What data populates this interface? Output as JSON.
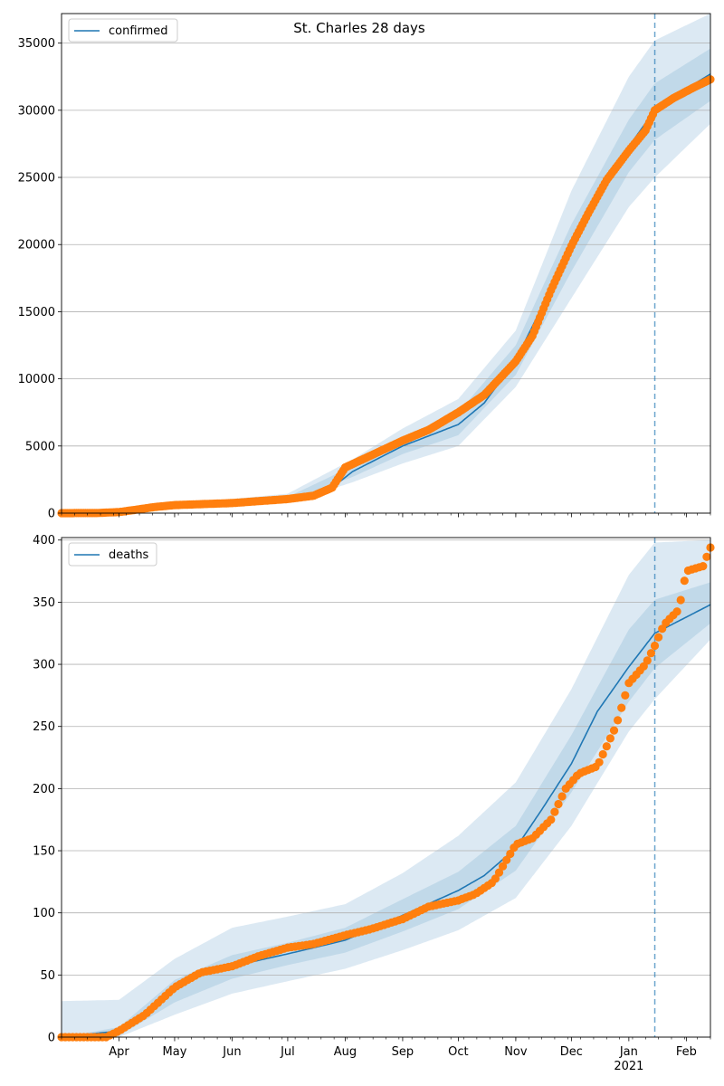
{
  "figure": {
    "title": "St. Charles 28 days"
  },
  "chart_data": [
    {
      "type": "line",
      "id": "confirmed",
      "title": "St. Charles 28 days",
      "legend": {
        "label": "confirmed",
        "position": "top-left"
      },
      "ylim": [
        0,
        37200
      ],
      "yticks": [
        0,
        5000,
        10000,
        15000,
        20000,
        25000,
        30000,
        35000
      ],
      "grid": "y",
      "forecast_start": "2021-01-15",
      "model_line": {
        "dates": [
          "2020-03-01",
          "2020-04-01",
          "2020-05-01",
          "2020-06-01",
          "2020-07-01",
          "2020-07-15",
          "2020-07-25",
          "2020-08-05",
          "2020-09-01",
          "2020-10-01",
          "2020-10-15",
          "2020-11-01",
          "2020-11-15",
          "2020-12-01",
          "2020-12-15",
          "2021-01-01",
          "2021-01-15",
          "2021-02-01",
          "2021-02-14"
        ],
        "values": [
          0,
          150,
          450,
          800,
          1050,
          1350,
          1900,
          3100,
          5000,
          6600,
          8200,
          11400,
          15300,
          19800,
          23600,
          27300,
          30000,
          31600,
          32700
        ]
      },
      "band_80": {
        "dates": [
          "2020-03-01",
          "2020-05-01",
          "2020-07-01",
          "2020-08-05",
          "2020-09-01",
          "2020-10-01",
          "2020-11-01",
          "2020-12-01",
          "2021-01-01",
          "2021-01-15",
          "2021-02-14"
        ],
        "lower": [
          0,
          400,
          900,
          2700,
          4400,
          5800,
          10300,
          18000,
          25400,
          27800,
          30700
        ],
        "upper": [
          0,
          520,
          1200,
          3500,
          5500,
          7500,
          12500,
          21500,
          29300,
          32000,
          34600
        ]
      },
      "band_95": {
        "dates": [
          "2020-03-01",
          "2020-05-01",
          "2020-07-01",
          "2020-08-05",
          "2020-09-01",
          "2020-10-01",
          "2020-11-01",
          "2020-12-01",
          "2021-01-01",
          "2021-01-15",
          "2021-02-14"
        ],
        "lower": [
          0,
          320,
          750,
          2300,
          3700,
          5000,
          9400,
          16000,
          22800,
          25000,
          29000
        ],
        "upper": [
          0,
          650,
          1450,
          4000,
          6300,
          8500,
          13600,
          24000,
          32500,
          35200,
          37200
        ]
      },
      "observed": {
        "dates": [
          "2020-03-01",
          "2020-03-20",
          "2020-04-01",
          "2020-04-10",
          "2020-04-20",
          "2020-05-01",
          "2020-06-01",
          "2020-07-01",
          "2020-07-15",
          "2020-07-25",
          "2020-08-01",
          "2020-08-15",
          "2020-09-01",
          "2020-09-15",
          "2020-10-01",
          "2020-10-15",
          "2020-11-01",
          "2020-11-10",
          "2020-11-20",
          "2020-12-01",
          "2020-12-10",
          "2020-12-20",
          "2021-01-01",
          "2021-01-10",
          "2021-01-15",
          "2021-01-25",
          "2021-02-05",
          "2021-02-14"
        ],
        "values": [
          0,
          10,
          80,
          250,
          450,
          600,
          750,
          1050,
          1300,
          1900,
          3400,
          4300,
          5400,
          6200,
          7500,
          8800,
          11300,
          13200,
          16600,
          19900,
          22300,
          24800,
          27000,
          28500,
          30000,
          30900,
          31700,
          32300
        ]
      }
    },
    {
      "type": "line",
      "id": "deaths",
      "legend": {
        "label": "deaths",
        "position": "top-left"
      },
      "ylim": [
        0,
        402
      ],
      "yticks": [
        0,
        50,
        100,
        150,
        200,
        250,
        300,
        350,
        400
      ],
      "grid": "y",
      "forecast_start": "2021-01-15",
      "model_line": {
        "dates": [
          "2020-03-01",
          "2020-04-01",
          "2020-04-15",
          "2020-05-01",
          "2020-05-15",
          "2020-06-01",
          "2020-07-01",
          "2020-08-01",
          "2020-09-01",
          "2020-10-01",
          "2020-10-15",
          "2020-11-01",
          "2020-11-15",
          "2020-12-01",
          "2020-12-15",
          "2021-01-01",
          "2021-01-15",
          "2021-02-01",
          "2021-02-14"
        ],
        "values": [
          0,
          5,
          20,
          38,
          50,
          57,
          67,
          78,
          98,
          118,
          130,
          152,
          183,
          220,
          262,
          298,
          325,
          338,
          348
        ]
      },
      "band_80": {
        "dates": [
          "2020-03-01",
          "2020-04-01",
          "2020-05-01",
          "2020-06-01",
          "2020-07-01",
          "2020-08-01",
          "2020-09-01",
          "2020-10-01",
          "2020-11-01",
          "2020-12-01",
          "2021-01-01",
          "2021-01-15",
          "2021-02-14"
        ],
        "lower": [
          0,
          1,
          28,
          47,
          58,
          68,
          85,
          103,
          134,
          197,
          270,
          297,
          333
        ],
        "upper": [
          0,
          8,
          46,
          66,
          76,
          88,
          111,
          133,
          170,
          243,
          328,
          352,
          366
        ]
      },
      "band_95": {
        "dates": [
          "2020-03-01",
          "2020-04-01",
          "2020-05-01",
          "2020-06-01",
          "2020-07-01",
          "2020-08-01",
          "2020-09-01",
          "2020-10-01",
          "2020-11-01",
          "2020-12-01",
          "2021-01-01",
          "2021-01-15",
          "2021-02-14"
        ],
        "lower": [
          0,
          0,
          18,
          35,
          45,
          55,
          70,
          86,
          112,
          170,
          246,
          272,
          320
        ],
        "upper": [
          29,
          30,
          63,
          88,
          97,
          107,
          132,
          162,
          205,
          280,
          372,
          398,
          400
        ]
      },
      "observed": {
        "dates": [
          "2020-03-01",
          "2020-03-25",
          "2020-04-01",
          "2020-04-15",
          "2020-05-01",
          "2020-05-15",
          "2020-06-01",
          "2020-06-15",
          "2020-07-01",
          "2020-07-15",
          "2020-08-01",
          "2020-08-15",
          "2020-09-01",
          "2020-09-15",
          "2020-10-01",
          "2020-10-10",
          "2020-10-20",
          "2020-11-01",
          "2020-11-10",
          "2020-11-20",
          "2020-11-28",
          "2020-12-05",
          "2020-12-15",
          "2020-12-25",
          "2021-01-01",
          "2021-01-10",
          "2021-01-15",
          "2021-01-20",
          "2021-01-28",
          "2021-02-01",
          "2021-02-10",
          "2021-02-14"
        ],
        "values": [
          0,
          0,
          5,
          18,
          40,
          52,
          57,
          65,
          72,
          75,
          82,
          87,
          95,
          105,
          110,
          115,
          125,
          155,
          160,
          175,
          200,
          212,
          218,
          250,
          285,
          300,
          315,
          332,
          344,
          375,
          379,
          394
        ]
      }
    }
  ],
  "x_axis": {
    "range": [
      "2020-03-01",
      "2021-02-14"
    ],
    "month_labels": [
      "Apr",
      "May",
      "Jun",
      "Jul",
      "Aug",
      "Sep",
      "Oct",
      "Nov",
      "Dec",
      "Jan",
      "Feb"
    ],
    "month_dates": [
      "2020-04-01",
      "2020-05-01",
      "2020-06-01",
      "2020-07-01",
      "2020-08-01",
      "2020-09-01",
      "2020-10-01",
      "2020-11-01",
      "2020-12-01",
      "2021-01-01",
      "2021-02-01"
    ],
    "year_label": "2021"
  },
  "colors": {
    "model": "#1f77b4",
    "observed": "#ff7f0e",
    "band": "#1f77b4",
    "grid": "#b0b0b0",
    "forecast_line": "#1f77b4"
  }
}
